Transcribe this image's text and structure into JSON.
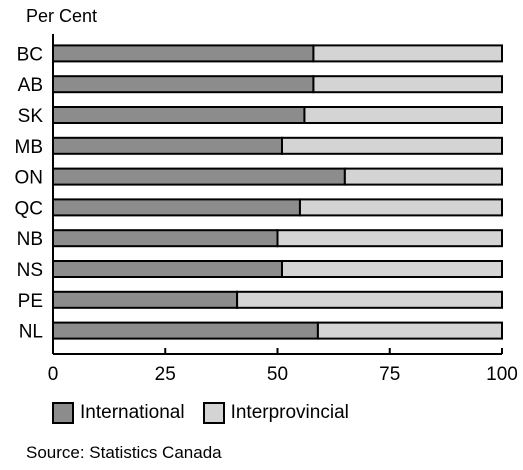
{
  "chart_data": {
    "type": "bar",
    "orientation": "horizontal",
    "stacked": true,
    "ylabel": "Per Cent",
    "categories": [
      "BC",
      "AB",
      "SK",
      "MB",
      "ON",
      "QC",
      "NB",
      "NS",
      "PE",
      "NL"
    ],
    "series": [
      {
        "name": "International",
        "color": "#8c8c8c",
        "values": [
          58,
          58,
          56,
          51,
          65,
          55,
          50,
          51,
          41,
          59
        ]
      },
      {
        "name": "Interprovincial",
        "color": "#d4d4d4",
        "values": [
          42,
          42,
          44,
          49,
          35,
          45,
          50,
          49,
          59,
          41
        ]
      }
    ],
    "xlim": [
      0,
      100
    ],
    "xticks": [
      "0",
      "25",
      "50",
      "75",
      "100"
    ],
    "grid": false,
    "legend_position": "bottom-left",
    "source": "Source: Statistics Canada"
  }
}
